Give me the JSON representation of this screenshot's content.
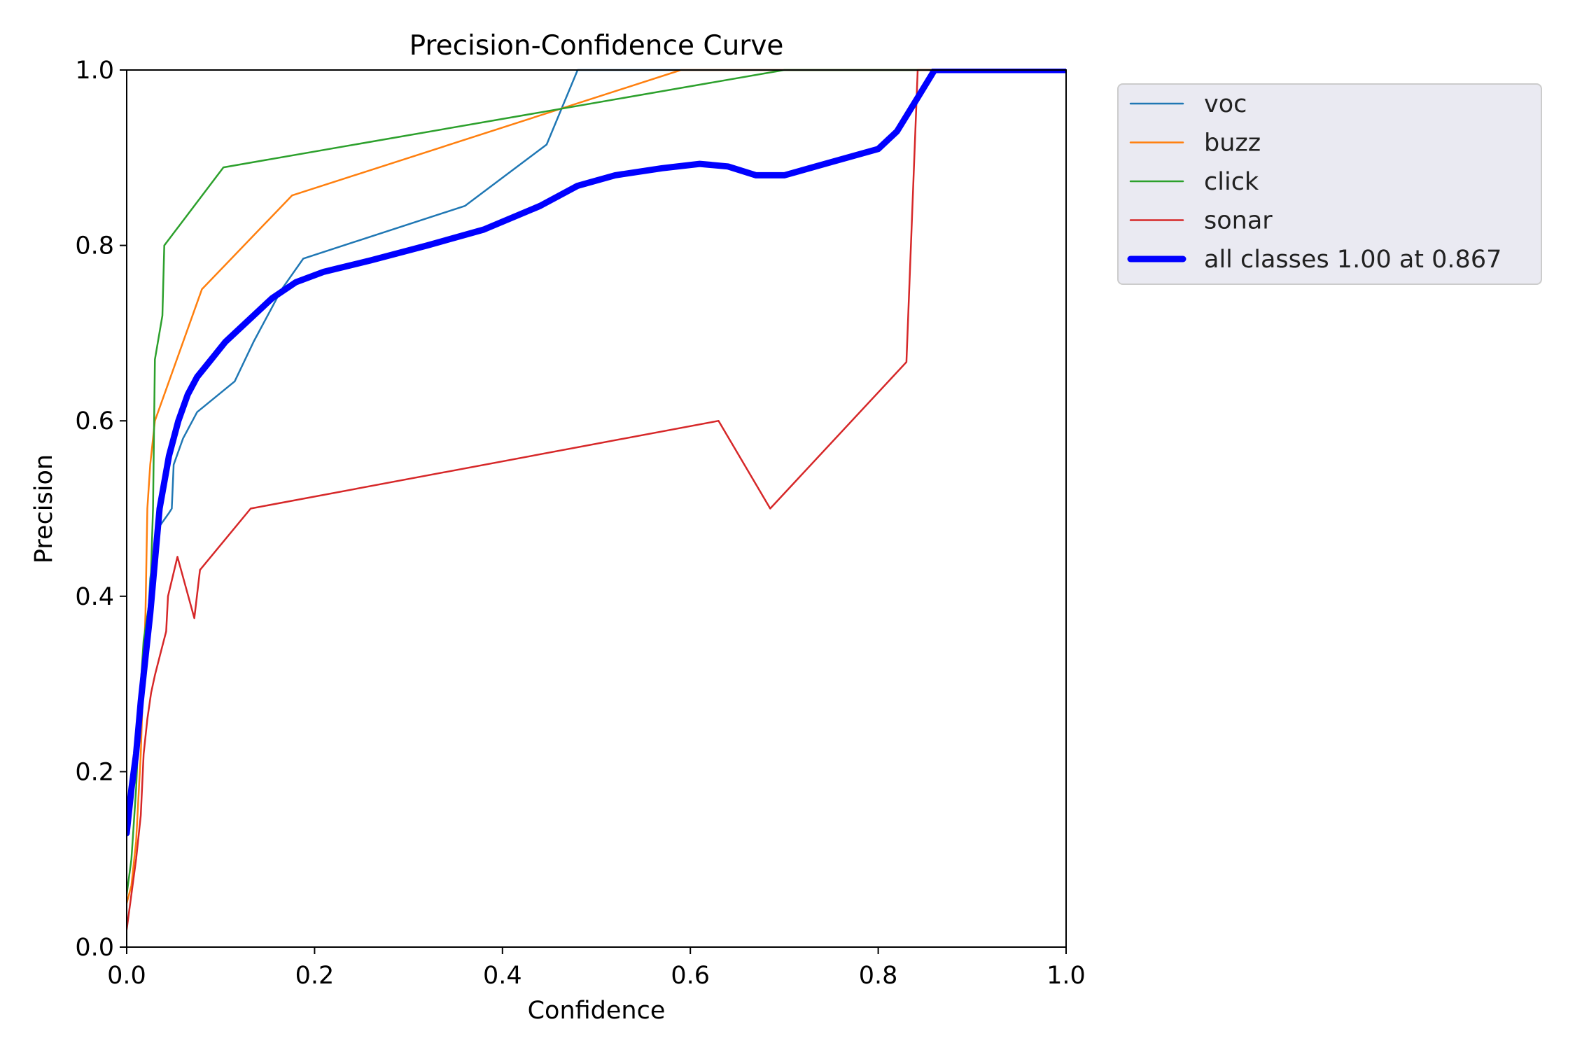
{
  "chart_data": {
    "type": "line",
    "title": "Precision-Confidence Curve",
    "xlabel": "Confidence",
    "ylabel": "Precision",
    "xlim": [
      0,
      1
    ],
    "ylim": [
      0,
      1
    ],
    "xticks": [
      "0.0",
      "0.2",
      "0.4",
      "0.6",
      "0.8",
      "1.0"
    ],
    "yticks": [
      "0.0",
      "0.2",
      "0.4",
      "0.6",
      "0.8",
      "1.0"
    ],
    "grid": false,
    "legend_position": "outside-top-right",
    "series": [
      {
        "name": "voc",
        "color": "#1f77b4",
        "points": [
          [
            0.0,
            0.14
          ],
          [
            0.005,
            0.17
          ],
          [
            0.01,
            0.2
          ],
          [
            0.015,
            0.26
          ],
          [
            0.02,
            0.32
          ],
          [
            0.025,
            0.42
          ],
          [
            0.03,
            0.46
          ],
          [
            0.035,
            0.48
          ],
          [
            0.045,
            0.495
          ],
          [
            0.048,
            0.5
          ],
          [
            0.05,
            0.55
          ],
          [
            0.06,
            0.58
          ],
          [
            0.075,
            0.61
          ],
          [
            0.115,
            0.645
          ],
          [
            0.135,
            0.69
          ],
          [
            0.165,
            0.75
          ],
          [
            0.188,
            0.785
          ],
          [
            0.36,
            0.845
          ],
          [
            0.447,
            0.915
          ],
          [
            0.48,
            1.0
          ],
          [
            1.0,
            1.0
          ]
        ]
      },
      {
        "name": "buzz",
        "color": "#ff7f0e",
        "points": [
          [
            0.0,
            0.05
          ],
          [
            0.005,
            0.07
          ],
          [
            0.01,
            0.12
          ],
          [
            0.015,
            0.22
          ],
          [
            0.02,
            0.38
          ],
          [
            0.022,
            0.5
          ],
          [
            0.025,
            0.55
          ],
          [
            0.03,
            0.6
          ],
          [
            0.08,
            0.75
          ],
          [
            0.176,
            0.857
          ],
          [
            0.59,
            1.0
          ],
          [
            1.0,
            1.0
          ]
        ]
      },
      {
        "name": "click",
        "color": "#2ca02c",
        "points": [
          [
            0.0,
            0.06
          ],
          [
            0.005,
            0.1
          ],
          [
            0.01,
            0.18
          ],
          [
            0.015,
            0.3
          ],
          [
            0.018,
            0.35
          ],
          [
            0.025,
            0.4
          ],
          [
            0.028,
            0.5
          ],
          [
            0.03,
            0.67
          ],
          [
            0.038,
            0.72
          ],
          [
            0.04,
            0.8
          ],
          [
            0.103,
            0.889
          ],
          [
            0.7,
            1.0
          ],
          [
            1.0,
            1.0
          ]
        ]
      },
      {
        "name": "sonar",
        "color": "#d62728",
        "points": [
          [
            0.0,
            0.02
          ],
          [
            0.005,
            0.06
          ],
          [
            0.01,
            0.1
          ],
          [
            0.015,
            0.15
          ],
          [
            0.018,
            0.22
          ],
          [
            0.022,
            0.26
          ],
          [
            0.026,
            0.29
          ],
          [
            0.03,
            0.31
          ],
          [
            0.036,
            0.335
          ],
          [
            0.042,
            0.36
          ],
          [
            0.044,
            0.4
          ],
          [
            0.054,
            0.445
          ],
          [
            0.072,
            0.375
          ],
          [
            0.078,
            0.43
          ],
          [
            0.132,
            0.5
          ],
          [
            0.63,
            0.6
          ],
          [
            0.685,
            0.5
          ],
          [
            0.83,
            0.667
          ],
          [
            0.842,
            1.0
          ],
          [
            1.0,
            1.0
          ]
        ]
      },
      {
        "name": "all classes 1.00 at 0.867",
        "color": "#0000ff",
        "bold": true,
        "points": [
          [
            0.0,
            0.13
          ],
          [
            0.005,
            0.18
          ],
          [
            0.01,
            0.22
          ],
          [
            0.015,
            0.28
          ],
          [
            0.02,
            0.33
          ],
          [
            0.025,
            0.38
          ],
          [
            0.03,
            0.44
          ],
          [
            0.035,
            0.5
          ],
          [
            0.045,
            0.56
          ],
          [
            0.055,
            0.6
          ],
          [
            0.065,
            0.63
          ],
          [
            0.075,
            0.65
          ],
          [
            0.09,
            0.67
          ],
          [
            0.105,
            0.69
          ],
          [
            0.13,
            0.715
          ],
          [
            0.155,
            0.74
          ],
          [
            0.18,
            0.758
          ],
          [
            0.21,
            0.77
          ],
          [
            0.26,
            0.783
          ],
          [
            0.32,
            0.8
          ],
          [
            0.38,
            0.818
          ],
          [
            0.44,
            0.845
          ],
          [
            0.48,
            0.868
          ],
          [
            0.52,
            0.88
          ],
          [
            0.57,
            0.888
          ],
          [
            0.61,
            0.893
          ],
          [
            0.64,
            0.89
          ],
          [
            0.67,
            0.88
          ],
          [
            0.7,
            0.88
          ],
          [
            0.75,
            0.895
          ],
          [
            0.8,
            0.91
          ],
          [
            0.82,
            0.93
          ],
          [
            0.84,
            0.965
          ],
          [
            0.86,
            1.0
          ],
          [
            0.867,
            1.0
          ],
          [
            1.0,
            1.0
          ]
        ]
      }
    ]
  }
}
